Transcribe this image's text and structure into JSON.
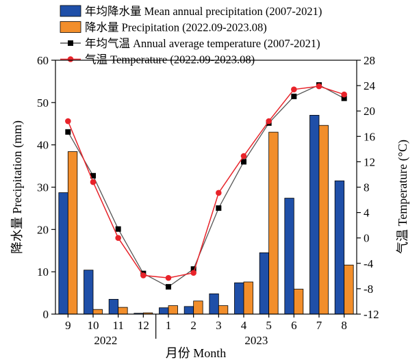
{
  "chart_data": {
    "type": "bar",
    "categories": [
      "9",
      "10",
      "11",
      "12",
      "1",
      "2",
      "3",
      "4",
      "5",
      "6",
      "7",
      "8"
    ],
    "year_groups": [
      {
        "label": "2022",
        "from": 0,
        "to": 3
      },
      {
        "label": "2023",
        "from": 4,
        "to": 11
      }
    ],
    "series": [
      {
        "name": "年均降水量 Mean annual precipitation (2007-2021)",
        "kind": "bar",
        "axis": "left",
        "color": "#1f4fa8",
        "values": [
          28.7,
          10.4,
          3.5,
          0.2,
          1.5,
          1.8,
          4.8,
          7.4,
          14.5,
          27.4,
          47.0,
          31.5
        ]
      },
      {
        "name": "降水量 Precipitation (2022.09-2023.08)",
        "kind": "bar",
        "axis": "left",
        "color": "#f28e2b",
        "values": [
          38.4,
          1.1,
          1.6,
          0.3,
          2.0,
          3.1,
          2.0,
          7.6,
          43.0,
          5.9,
          44.6,
          11.6
        ]
      },
      {
        "name": "年均气温 Annual average temperature (2007-2021)",
        "kind": "line",
        "axis": "right",
        "color": "#000000",
        "line_color": "#555555",
        "marker": "square",
        "values": [
          16.7,
          9.8,
          1.4,
          -5.6,
          -7.7,
          -4.9,
          4.7,
          12.0,
          18.1,
          22.3,
          24.1,
          22.0
        ]
      },
      {
        "name": "气温 Temperature (2022.09-2023.08)",
        "kind": "line",
        "axis": "right",
        "color": "#e8232a",
        "line_color": "#e8232a",
        "marker": "circle",
        "values": [
          18.4,
          8.8,
          0.0,
          -5.9,
          -6.3,
          -5.5,
          7.1,
          12.9,
          18.4,
          23.4,
          23.9,
          22.6
        ]
      }
    ],
    "xlabel": "月份 Month",
    "ylabel_left": "降水量 Precipitation (mm)",
    "ylabel_right": "气温 Temperature (°C)",
    "ylim_left": [
      0,
      60
    ],
    "yticks_left": [
      0,
      10,
      20,
      30,
      40,
      50,
      60
    ],
    "ylim_right": [
      -12,
      28
    ],
    "yticks_right": [
      -12,
      -8,
      -4,
      0,
      4,
      8,
      12,
      16,
      20,
      24,
      28
    ],
    "grid": false,
    "legend_position": "top"
  }
}
